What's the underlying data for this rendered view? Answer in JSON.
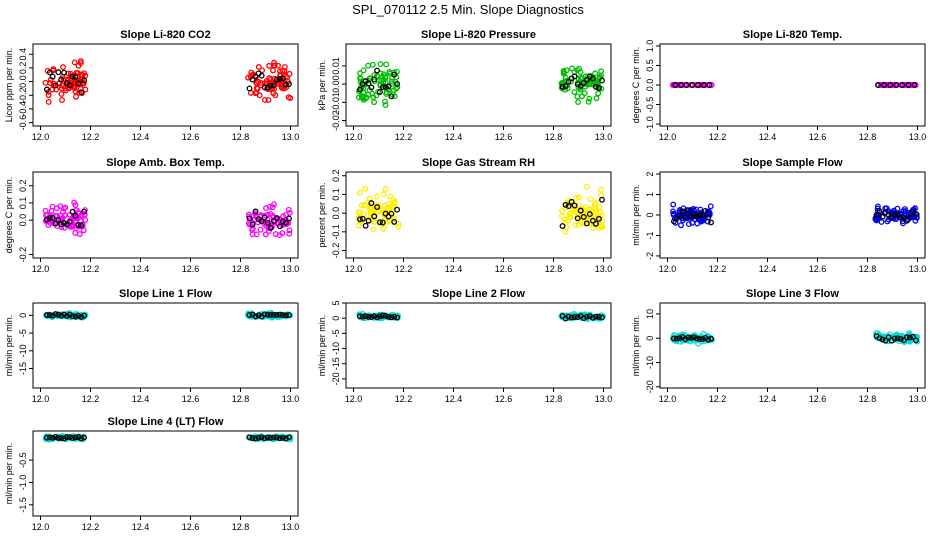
{
  "figure_title": "SPL_070112  2.5 Min. Slope Diagnostics",
  "chart_data": [
    {
      "type": "scatter",
      "title": "Slope Li-820 CO2",
      "ylabel": "Licor ppm per min.",
      "xlim": [
        11.97,
        13.03
      ],
      "ylim": [
        -0.65,
        0.55
      ],
      "yticks": [
        -0.6,
        -0.4,
        -0.2,
        0.0,
        0.2,
        0.4
      ],
      "ytick_labels": [
        "-0.6",
        "-0.4",
        "-0.2",
        "0.0",
        "0.2",
        "0.4"
      ],
      "xticks": [
        12.0,
        12.2,
        12.4,
        12.6,
        12.8,
        13.0
      ],
      "xtick_labels": [
        "12.0",
        "12.2",
        "12.4",
        "12.6",
        "12.8",
        "13.0"
      ],
      "colors": [
        "#ff0000",
        "#000000"
      ],
      "segments": [
        [
          12.02,
          12.18
        ],
        [
          12.83,
          13.0
        ]
      ],
      "spread": 0.2,
      "center": 0.0,
      "density": 1.0
    },
    {
      "type": "scatter",
      "title": "Slope Li-820 Pressure",
      "ylabel": "kPa per min.",
      "xlim": [
        11.97,
        13.03
      ],
      "ylim": [
        -0.023,
        0.022
      ],
      "yticks": [
        -0.02,
        -0.01,
        0.0,
        0.01
      ],
      "ytick_labels": [
        "-0.02",
        "-0.01",
        "0.00",
        "0.01"
      ],
      "xticks": [
        12.0,
        12.2,
        12.4,
        12.6,
        12.8,
        13.0
      ],
      "xtick_labels": [
        "12.0",
        "12.2",
        "12.4",
        "12.6",
        "12.8",
        "13.0"
      ],
      "colors": [
        "#00bb00",
        "#000000"
      ],
      "segments": [
        [
          12.02,
          12.18
        ],
        [
          12.83,
          13.0
        ]
      ],
      "spread": 0.008,
      "center": 0.0,
      "density": 1.0
    },
    {
      "type": "scatter",
      "title": "Slope Li-820 Temp.",
      "ylabel": "degrees C per min.",
      "xlim": [
        11.97,
        13.03
      ],
      "ylim": [
        -1.05,
        1.05
      ],
      "yticks": [
        -1.0,
        -0.5,
        0.0,
        0.5,
        1.0
      ],
      "ytick_labels": [
        "-1.0",
        "-0.5",
        "0.0",
        "0.5",
        "1.0"
      ],
      "xticks": [
        12.0,
        12.2,
        12.4,
        12.6,
        12.8,
        13.0
      ],
      "xtick_labels": [
        "12.0",
        "12.2",
        "12.4",
        "12.6",
        "12.8",
        "13.0"
      ],
      "colors": [
        "#ff00ff",
        "#000000"
      ],
      "segments": [
        [
          12.02,
          12.18
        ],
        [
          12.83,
          13.0
        ]
      ],
      "spread": 0.0,
      "center": 0.0,
      "density": 0.5
    },
    {
      "type": "scatter",
      "title": "Slope Amb. Box Temp.",
      "ylabel": "degrees C per min.",
      "xlim": [
        11.97,
        13.03
      ],
      "ylim": [
        -0.22,
        0.28
      ],
      "yticks": [
        -0.2,
        0.0,
        0.1,
        0.2
      ],
      "ytick_labels": [
        "-0.2",
        "0.0",
        "0.1",
        "0.2"
      ],
      "xticks": [
        12.0,
        12.2,
        12.4,
        12.6,
        12.8,
        13.0
      ],
      "xtick_labels": [
        "12.0",
        "12.2",
        "12.4",
        "12.6",
        "12.8",
        "13.0"
      ],
      "colors": [
        "#ff00ff",
        "#000000"
      ],
      "segments": [
        [
          12.02,
          12.18
        ],
        [
          12.83,
          13.0
        ]
      ],
      "spread": 0.07,
      "center": 0.0,
      "density": 1.0
    },
    {
      "type": "scatter",
      "title": "Slope Gas Stream RH",
      "ylabel": "percent per min.",
      "xlim": [
        11.97,
        13.03
      ],
      "ylim": [
        -0.24,
        0.22
      ],
      "yticks": [
        -0.2,
        -0.1,
        0.0,
        0.1,
        0.2
      ],
      "ytick_labels": [
        "-0.2",
        "-0.1",
        "0.0",
        "0.1",
        "0.2"
      ],
      "xticks": [
        12.0,
        12.2,
        12.4,
        12.6,
        12.8,
        13.0
      ],
      "xtick_labels": [
        "12.0",
        "12.2",
        "12.4",
        "12.6",
        "12.8",
        "13.0"
      ],
      "colors": [
        "#ffee00",
        "#000000"
      ],
      "segments": [
        [
          12.02,
          12.18
        ],
        [
          12.83,
          13.0
        ]
      ],
      "spread": 0.09,
      "center": 0.0,
      "density": 1.0
    },
    {
      "type": "scatter",
      "title": "Slope Sample Flow",
      "ylabel": "ml/min per min.",
      "xlim": [
        11.97,
        13.03
      ],
      "ylim": [
        -2.1,
        2.1
      ],
      "yticks": [
        -2,
        -1,
        0,
        1,
        2
      ],
      "ytick_labels": [
        "-2",
        "-1",
        "0",
        "1",
        "2"
      ],
      "xticks": [
        12.0,
        12.2,
        12.4,
        12.6,
        12.8,
        13.0
      ],
      "xtick_labels": [
        "12.0",
        "12.2",
        "12.4",
        "12.6",
        "12.8",
        "13.0"
      ],
      "colors": [
        "#0000ee",
        "#000000"
      ],
      "segments": [
        [
          12.02,
          12.18
        ],
        [
          12.83,
          13.0
        ]
      ],
      "spread": 0.35,
      "center": 0.0,
      "density": 1.0
    },
    {
      "type": "scatter",
      "title": "Slope Line 1 Flow",
      "ylabel": "ml/min per min.",
      "xlim": [
        11.97,
        13.03
      ],
      "ylim": [
        -20.5,
        3.5
      ],
      "yticks": [
        -15,
        -10,
        -5,
        0
      ],
      "ytick_labels": [
        "-15",
        "-10",
        "-5",
        "0"
      ],
      "xticks": [
        12.0,
        12.2,
        12.4,
        12.6,
        12.8,
        13.0
      ],
      "xtick_labels": [
        "12.0",
        "12.2",
        "12.4",
        "12.6",
        "12.8",
        "13.0"
      ],
      "colors": [
        "#00dddd",
        "#000000"
      ],
      "segments": [
        [
          12.02,
          12.18
        ],
        [
          12.83,
          13.0
        ]
      ],
      "spread": 0.5,
      "center": 0.0,
      "density": 1.0
    },
    {
      "type": "scatter",
      "title": "Slope Line 2 Flow",
      "ylabel": "ml/min per min.",
      "xlim": [
        11.97,
        13.03
      ],
      "ylim": [
        -23.0,
        5.0
      ],
      "yticks": [
        -20,
        -15,
        -10,
        -5,
        0,
        5
      ],
      "ytick_labels": [
        "-20",
        "-15",
        "-10",
        "-5",
        "0",
        "5"
      ],
      "xticks": [
        12.0,
        12.2,
        12.4,
        12.6,
        12.8,
        13.0
      ],
      "xtick_labels": [
        "12.0",
        "12.2",
        "12.4",
        "12.6",
        "12.8",
        "13.0"
      ],
      "colors": [
        "#00dddd",
        "#000000"
      ],
      "segments": [
        [
          12.02,
          12.18
        ],
        [
          12.83,
          13.0
        ]
      ],
      "spread": 0.6,
      "center": 0.5,
      "density": 1.0
    },
    {
      "type": "scatter",
      "title": "Slope Line 3 Flow",
      "ylabel": "ml/min per min.",
      "xlim": [
        11.97,
        13.03
      ],
      "ylim": [
        -20.5,
        14.5
      ],
      "yticks": [
        -20,
        -10,
        0,
        10
      ],
      "ytick_labels": [
        "-20",
        "-10",
        "0",
        "10"
      ],
      "xticks": [
        12.0,
        12.2,
        12.4,
        12.6,
        12.8,
        13.0
      ],
      "xtick_labels": [
        "12.0",
        "12.2",
        "12.4",
        "12.6",
        "12.8",
        "13.0"
      ],
      "colors": [
        "#00dddd",
        "#000000"
      ],
      "segments": [
        [
          12.02,
          12.18
        ],
        [
          12.83,
          13.0
        ]
      ],
      "spread": 1.5,
      "center": 0.0,
      "density": 1.0
    },
    {
      "type": "scatter",
      "title": "Slope Line 4 (LT) Flow",
      "ylabel": "ml/min per min.",
      "xlim": [
        11.97,
        13.03
      ],
      "ylim": [
        -1.75,
        0.15
      ],
      "yticks": [
        -1.5,
        -1.0,
        -0.5
      ],
      "ytick_labels": [
        "-1.5",
        "-1.0",
        "-0.5"
      ],
      "xticks": [
        12.0,
        12.2,
        12.4,
        12.6,
        12.8,
        13.0
      ],
      "xtick_labels": [
        "12.0",
        "12.2",
        "12.4",
        "12.6",
        "12.8",
        "13.0"
      ],
      "colors": [
        "#00dddd",
        "#000000"
      ],
      "segments": [
        [
          12.02,
          12.18
        ],
        [
          12.83,
          13.0
        ]
      ],
      "spread": 0.03,
      "center": 0.0,
      "density": 1.0
    }
  ]
}
